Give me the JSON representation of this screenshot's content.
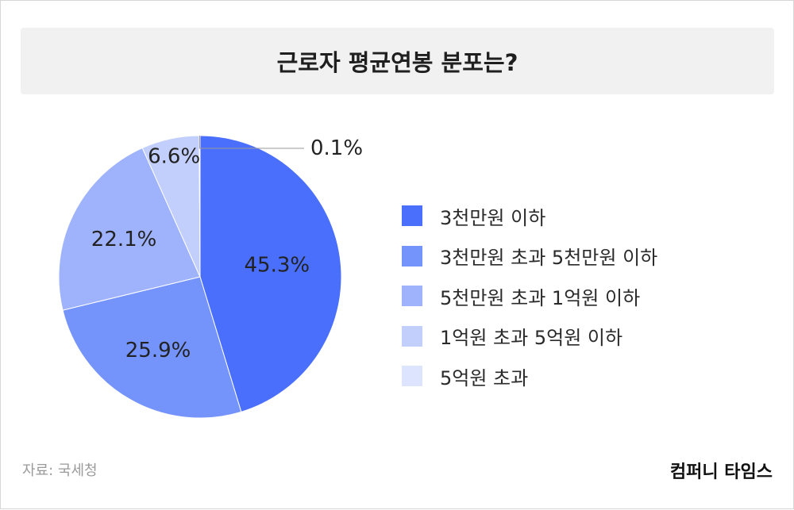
{
  "title": "근로자 평균연봉 분포는?",
  "source": "자료: 국세청",
  "brand": "컴퍼니 타임스",
  "chart_data": {
    "type": "pie",
    "title": "근로자 평균연봉 분포는?",
    "slices": [
      {
        "name": "3천만원 이하",
        "value": 45.3,
        "label": "45.3%",
        "color": "#4a6ffd"
      },
      {
        "name": "3천만원 초과 5천만원 이하",
        "value": 25.9,
        "label": "25.9%",
        "color": "#7494fc"
      },
      {
        "name": "5천만원 초과 1억원 이하",
        "value": 22.1,
        "label": "22.1%",
        "color": "#9fb3fc"
      },
      {
        "name": "1억원 초과 5억원 이하",
        "value": 6.6,
        "label": "6.6%",
        "color": "#c2cffd"
      },
      {
        "name": "5억원 초과",
        "value": 0.1,
        "label": "0.1%",
        "color": "#dde4fe"
      }
    ],
    "legend_position": "right",
    "start": "top, clockwise"
  }
}
